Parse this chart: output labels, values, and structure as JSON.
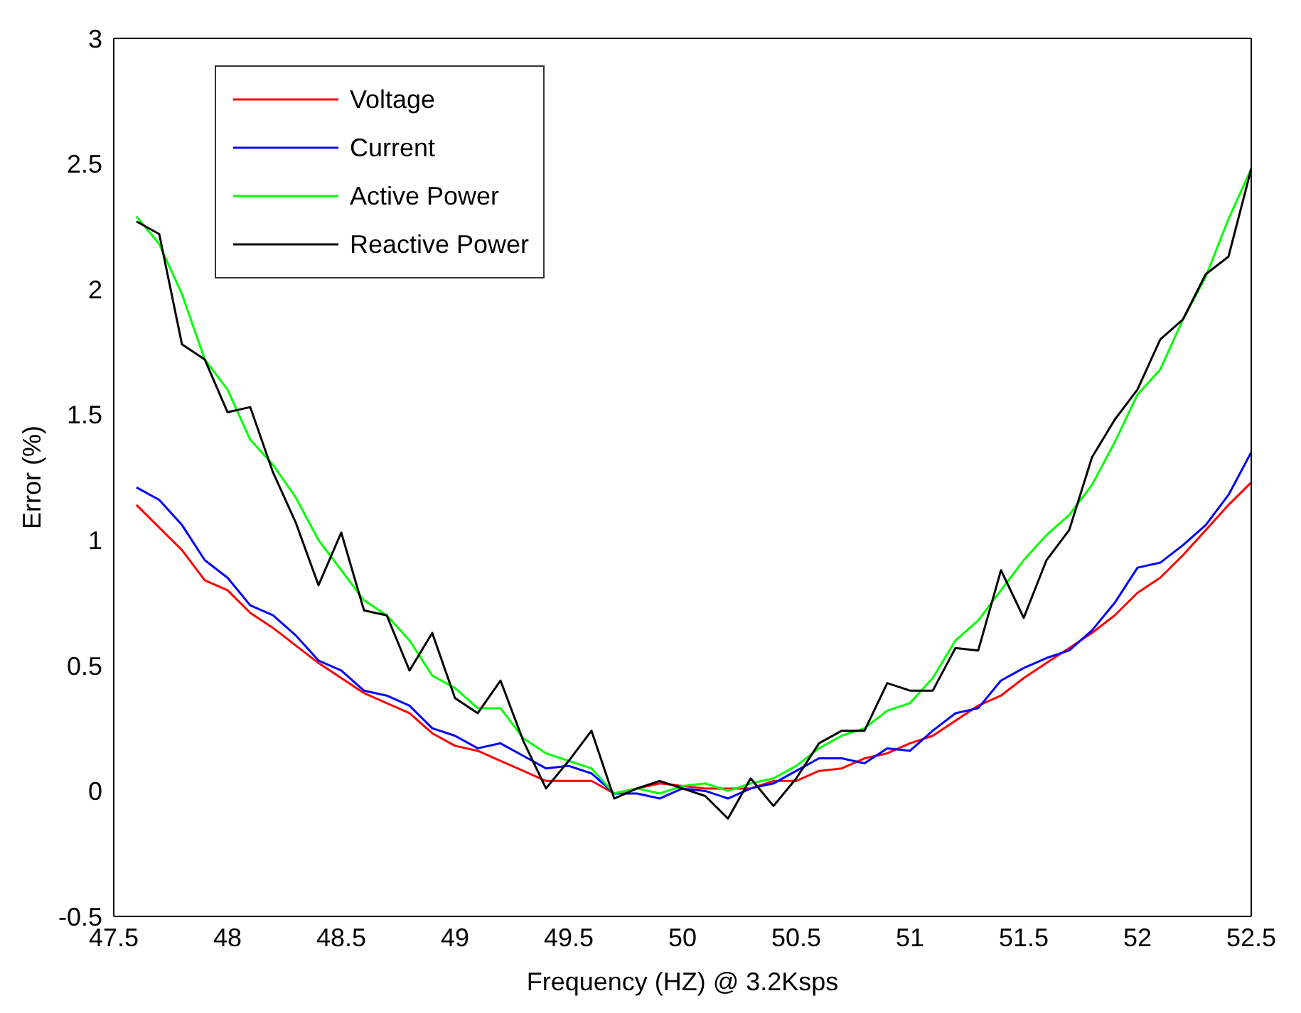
{
  "chart_data": {
    "type": "line",
    "xlabel": "Frequency (HZ) @ 3.2Ksps",
    "ylabel": "Error (%)",
    "x": [
      47.6,
      47.7,
      47.8,
      47.9,
      48.0,
      48.1,
      48.2,
      48.3,
      48.4,
      48.5,
      48.6,
      48.7,
      48.8,
      48.9,
      49.0,
      49.1,
      49.2,
      49.3,
      49.4,
      49.5,
      49.6,
      49.7,
      49.8,
      49.9,
      50.0,
      50.1,
      50.2,
      50.3,
      50.4,
      50.5,
      50.6,
      50.7,
      50.8,
      50.9,
      51.0,
      51.1,
      51.2,
      51.3,
      51.4,
      51.5,
      51.6,
      51.7,
      51.8,
      51.9,
      52.0,
      52.1,
      52.2,
      52.3,
      52.4,
      52.5
    ],
    "series": [
      {
        "name": "Voltage",
        "color": "#ff0000",
        "values": [
          1.14,
          1.05,
          0.96,
          0.84,
          0.8,
          0.71,
          0.65,
          0.58,
          0.51,
          0.45,
          0.39,
          0.35,
          0.31,
          0.23,
          0.18,
          0.16,
          0.12,
          0.08,
          0.04,
          0.04,
          0.04,
          -0.01,
          0.01,
          0.03,
          0.02,
          0.01,
          0.01,
          0.01,
          0.04,
          0.04,
          0.08,
          0.09,
          0.13,
          0.15,
          0.19,
          0.22,
          0.28,
          0.34,
          0.38,
          0.45,
          0.51,
          0.57,
          0.63,
          0.7,
          0.79,
          0.85,
          0.94,
          1.04,
          1.14,
          1.23
        ]
      },
      {
        "name": "Current",
        "color": "#0000ff",
        "values": [
          1.21,
          1.16,
          1.06,
          0.92,
          0.85,
          0.74,
          0.7,
          0.62,
          0.52,
          0.48,
          0.4,
          0.38,
          0.34,
          0.25,
          0.22,
          0.17,
          0.19,
          0.14,
          0.09,
          0.1,
          0.07,
          -0.01,
          -0.01,
          -0.03,
          0.01,
          0.0,
          -0.03,
          0.01,
          0.03,
          0.08,
          0.13,
          0.13,
          0.11,
          0.17,
          0.16,
          0.24,
          0.31,
          0.33,
          0.44,
          0.49,
          0.53,
          0.56,
          0.64,
          0.75,
          0.89,
          0.91,
          0.98,
          1.06,
          1.18,
          1.35
        ]
      },
      {
        "name": "Active Power",
        "color": "#00ff00",
        "values": [
          2.29,
          2.18,
          1.98,
          1.72,
          1.6,
          1.4,
          1.3,
          1.17,
          1.0,
          0.88,
          0.76,
          0.7,
          0.6,
          0.46,
          0.41,
          0.33,
          0.33,
          0.21,
          0.15,
          0.12,
          0.09,
          -0.01,
          0.01,
          -0.01,
          0.02,
          0.03,
          0.0,
          0.03,
          0.05,
          0.1,
          0.17,
          0.22,
          0.25,
          0.32,
          0.35,
          0.45,
          0.6,
          0.68,
          0.8,
          0.92,
          1.02,
          1.1,
          1.22,
          1.39,
          1.58,
          1.68,
          1.88,
          2.05,
          2.28,
          2.48
        ]
      },
      {
        "name": "Reactive Power",
        "color": "#000000",
        "values": [
          2.27,
          2.22,
          1.78,
          1.72,
          1.51,
          1.53,
          1.27,
          1.07,
          0.82,
          1.03,
          0.72,
          0.7,
          0.48,
          0.63,
          0.37,
          0.31,
          0.44,
          0.2,
          0.01,
          0.12,
          0.24,
          -0.03,
          0.01,
          0.04,
          0.01,
          -0.02,
          -0.11,
          0.05,
          -0.06,
          0.05,
          0.19,
          0.24,
          0.24,
          0.43,
          0.4,
          0.4,
          0.57,
          0.56,
          0.88,
          0.69,
          0.92,
          1.04,
          1.33,
          1.48,
          1.6,
          1.8,
          1.88,
          2.06,
          2.13,
          2.48
        ]
      }
    ],
    "xlim": [
      47.5,
      52.5
    ],
    "xticks": [
      47.5,
      48,
      48.5,
      49,
      49.5,
      50,
      50.5,
      51,
      51.5,
      52,
      52.5
    ],
    "ylim": [
      -0.5,
      3
    ],
    "yticks": [
      -0.5,
      0,
      0.5,
      1,
      1.5,
      2,
      2.5,
      3
    ],
    "legend": "top left",
    "marker": "none",
    "line_style": "solid"
  }
}
